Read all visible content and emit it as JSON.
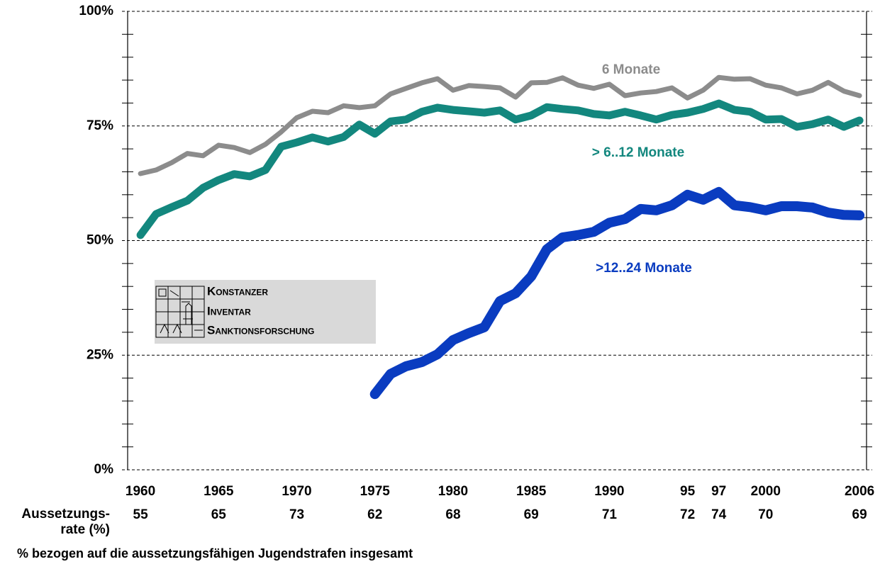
{
  "chart_data": {
    "type": "line",
    "x": [
      1960,
      1961,
      1962,
      1963,
      1964,
      1965,
      1966,
      1967,
      1968,
      1969,
      1970,
      1971,
      1972,
      1973,
      1974,
      1975,
      1976,
      1977,
      1978,
      1979,
      1980,
      1981,
      1982,
      1983,
      1984,
      1985,
      1986,
      1987,
      1988,
      1989,
      1990,
      1991,
      1992,
      1993,
      1994,
      1995,
      1996,
      1997,
      1998,
      1999,
      2000,
      2001,
      2002,
      2003,
      2004,
      2005,
      2006
    ],
    "series": [
      {
        "name": "6 Monate",
        "color": "#8c8c8c",
        "values": [
          64.6,
          65.4,
          67,
          69,
          68.5,
          70.8,
          70.3,
          69.2,
          71,
          73.7,
          76.8,
          78.2,
          77.9,
          79.4,
          79,
          79.4,
          82,
          83.2,
          84.4,
          85.3,
          82.8,
          83.8,
          83.6,
          83.3,
          81.3,
          84.4,
          84.5,
          85.5,
          83.9,
          83.2,
          84.1,
          81.6,
          82.2,
          82.5,
          83.3,
          81.1,
          82.8,
          85.6,
          85.2,
          85.3,
          83.9,
          83.3,
          82,
          82.8,
          84.5,
          82.6,
          81.6
        ]
      },
      {
        "name": "> 6..12 Monate",
        "color": "#13877e",
        "values": [
          51.2,
          55.8,
          57.3,
          58.7,
          61.5,
          63.2,
          64.5,
          64,
          65.4,
          70.5,
          71.4,
          72.5,
          71.6,
          72.6,
          75.3,
          73.3,
          76,
          76.4,
          78.1,
          79,
          78.5,
          78.2,
          77.9,
          78.4,
          76.4,
          77.3,
          79.1,
          78.7,
          78.4,
          77.6,
          77.3,
          78.1,
          77.3,
          76.4,
          77.4,
          77.9,
          78.7,
          79.9,
          78.5,
          78.1,
          76.4,
          76.5,
          74.8,
          75.4,
          76.4,
          74.8,
          76.2
        ]
      },
      {
        "name": ">12..24 Monate",
        "color": "#0a3cc0",
        "values": [
          null,
          null,
          null,
          null,
          null,
          null,
          null,
          null,
          null,
          null,
          null,
          null,
          null,
          null,
          null,
          16.5,
          20.9,
          22.6,
          23.5,
          25.2,
          28.3,
          29.8,
          31.1,
          36.8,
          38.5,
          42.2,
          48.1,
          50.7,
          51.2,
          51.9,
          53.9,
          54.7,
          56.9,
          56.6,
          57.7,
          60,
          58.9,
          60.6,
          57.7,
          57.3,
          56.6,
          57.5,
          57.5,
          57.2,
          56.1,
          55.6,
          55.5
        ]
      }
    ],
    "xlim": [
      1959.18,
      2006.45
    ],
    "xticks": [
      1960,
      1965,
      1970,
      1975,
      1980,
      1985,
      1990,
      {
        "value": 1995,
        "label": "95"
      },
      {
        "value": 1997,
        "label": "97"
      },
      2000,
      2006
    ],
    "ylim": [
      0,
      100
    ],
    "yticks": [
      {
        "value": 0,
        "label": "0%"
      },
      {
        "value": 25,
        "label": "25%"
      },
      {
        "value": 50,
        "label": "50%"
      },
      {
        "value": 75,
        "label": "75%"
      },
      {
        "value": 100,
        "label": "100%"
      }
    ],
    "yminorticks": [
      5,
      10,
      15,
      20,
      30,
      35,
      40,
      45,
      55,
      60,
      65,
      70,
      80,
      85,
      90,
      95
    ],
    "grid": true,
    "rate_row": {
      "label_lines": [
        "Aussetzungs-",
        "rate (%)"
      ],
      "values": [
        55,
        65,
        73,
        62,
        68,
        69,
        71,
        72,
        74,
        70,
        69
      ]
    },
    "logo": {
      "lines": [
        "Konstanzer",
        "Inventar",
        "Sanktionsforschung"
      ]
    },
    "footnote": "%  bezogen auf die aussetzungsfähigen Jugendstrafen insgesamt"
  }
}
